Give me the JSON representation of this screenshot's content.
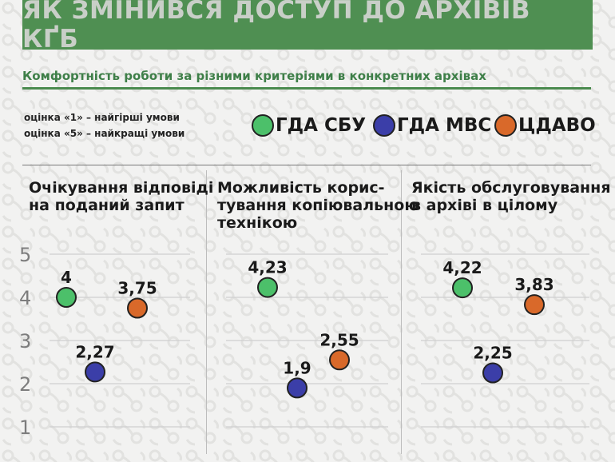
{
  "header": {
    "title": "ЯК ЗМІНИВСЯ ДОСТУП ДО АРХІВІВ КҐБ",
    "subtitle": "Комфортність роботи за різними критеріями в конкретних архівах"
  },
  "notes": {
    "worst": "оцінка «1» – найгірші умови",
    "best": "оцінка «5» – найкращі умови"
  },
  "colors": {
    "title_bg": "#4f8f52",
    "accent_green": "#3e7f48",
    "gda_sbu": "#4cc06a",
    "gda_mvs": "#3b3ea8",
    "tsdavo": "#d9692a"
  },
  "legend": [
    {
      "label": "ГДА СБУ",
      "color": "#4cc06a"
    },
    {
      "label": "ГДА МВС",
      "color": "#3b3ea8"
    },
    {
      "label": "ЦДАВО",
      "color": "#d9692a"
    }
  ],
  "chart_data": {
    "type": "scatter",
    "y_ticks": [
      "5",
      "4",
      "3",
      "2",
      "1"
    ],
    "ylim": [
      1,
      5
    ],
    "grid": true,
    "legend_position": "top",
    "series_names": [
      "ГДА СБУ",
      "ГДА МВС",
      "ЦДАВО"
    ],
    "panels": [
      {
        "title_lines": [
          "Очікування відповіді",
          "на поданий запит"
        ],
        "points": [
          {
            "series": "ГДА СБУ",
            "value": 4,
            "label": "4"
          },
          {
            "series": "ГДА МВС",
            "value": 2.27,
            "label": "2,27"
          },
          {
            "series": "ЦДАВО",
            "value": 3.75,
            "label": "3,75"
          }
        ]
      },
      {
        "title_lines": [
          "Можливість корис-",
          "тування копіювальною",
          "технікою"
        ],
        "points": [
          {
            "series": "ГДА СБУ",
            "value": 4.23,
            "label": "4,23"
          },
          {
            "series": "ГДА МВС",
            "value": 1.9,
            "label": "1,9"
          },
          {
            "series": "ЦДАВО",
            "value": 2.55,
            "label": "2,55"
          }
        ]
      },
      {
        "title_lines": [
          "Якість обслуговування",
          "в архіві в цілому"
        ],
        "points": [
          {
            "series": "ГДА СБУ",
            "value": 4.22,
            "label": "4,22"
          },
          {
            "series": "ГДА МВС",
            "value": 2.25,
            "label": "2,25"
          },
          {
            "series": "ЦДАВО",
            "value": 3.83,
            "label": "3,83"
          }
        ]
      }
    ]
  }
}
